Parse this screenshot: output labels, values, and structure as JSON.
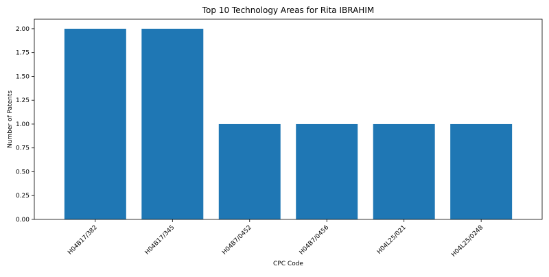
{
  "chart_data": {
    "type": "bar",
    "title": "Top 10 Technology Areas for Rita IBRAHIM",
    "xlabel": "CPC Code",
    "ylabel": "Number of Patents",
    "categories": [
      "H04B17/382",
      "H04B17/345",
      "H04B7/0452",
      "H04B7/0456",
      "H04L25/021",
      "H04L25/0248"
    ],
    "values": [
      2,
      2,
      1,
      1,
      1,
      1
    ],
    "ylim": [
      0,
      2.1
    ],
    "yticks": [
      "0.00",
      "0.25",
      "0.50",
      "0.75",
      "1.00",
      "1.25",
      "1.50",
      "1.75",
      "2.00"
    ],
    "bar_color": "#1f77b4",
    "grid": false,
    "legend": "none"
  }
}
